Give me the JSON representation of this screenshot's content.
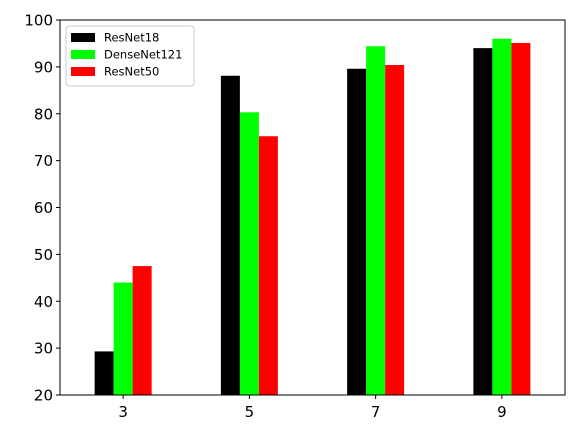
{
  "chart_data": {
    "type": "bar",
    "title": "",
    "xlabel": "",
    "ylabel": "",
    "categories": [
      "3",
      "5",
      "7",
      "9"
    ],
    "series": [
      {
        "name": "ResNet18",
        "color": "#000000",
        "values": [
          29.3,
          88.1,
          89.6,
          94.0
        ]
      },
      {
        "name": "DenseNet121",
        "color": "#00ff00",
        "values": [
          44.0,
          80.3,
          94.4,
          96.0
        ]
      },
      {
        "name": "ResNet50",
        "color": "#ff0000",
        "values": [
          47.5,
          75.2,
          90.4,
          95.1
        ]
      }
    ],
    "ylim": [
      20,
      100
    ],
    "yticks": [
      20,
      30,
      40,
      50,
      60,
      70,
      80,
      90,
      100
    ],
    "grid": false,
    "legend_position": "top-left"
  }
}
